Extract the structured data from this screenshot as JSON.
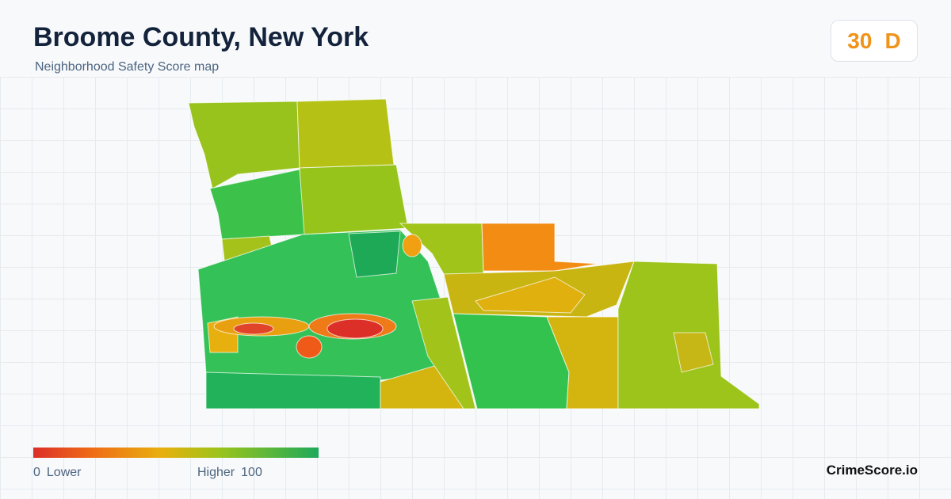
{
  "header": {
    "title": "Broome County, New York",
    "subtitle": "Neighborhood Safety Score map"
  },
  "score": {
    "value": 30,
    "grade": "D"
  },
  "legend": {
    "min": 0,
    "min_label": "Lower",
    "max_label": "Higher",
    "max": 100
  },
  "brand": "CrimeScore.io"
}
